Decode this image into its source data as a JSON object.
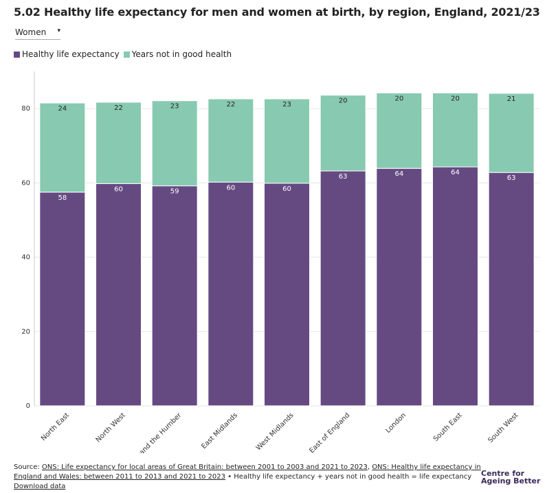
{
  "chart_data": {
    "type": "stacked_bar",
    "title": "5.02 Healthy life expectancy for men and women at birth, by region, England, 2021/23",
    "selector": "Women",
    "categories": [
      "North East",
      "North West",
      "Yorkshire and the Humber",
      "East Midlands",
      "West Midlands",
      "East of England",
      "London",
      "South East",
      "South West"
    ],
    "series": [
      {
        "name": "Healthy life expectancy",
        "color": "#654a82",
        "values": [
          57.5,
          59.8,
          59.2,
          60.2,
          59.9,
          63.2,
          63.9,
          64.3,
          62.8
        ],
        "value_labels": [
          "58",
          "60",
          "59",
          "60",
          "60",
          "63",
          "64",
          "64",
          "63"
        ]
      },
      {
        "name": "Years not in good health",
        "color": "#88c9b1",
        "values": [
          24.0,
          21.9,
          22.9,
          22.4,
          22.7,
          20.4,
          20.3,
          19.9,
          21.3
        ],
        "value_labels": [
          "24",
          "22",
          "23",
          "22",
          "23",
          "20",
          "20",
          "20",
          "21"
        ]
      }
    ],
    "ylim": [
      0,
      90
    ],
    "yticks": [
      0,
      20,
      40,
      60,
      80
    ],
    "grid": true
  },
  "footer": {
    "source_label": "Source:",
    "links": [
      "ONS: Life expectancy for local areas of Great Britain: between 2001 to 2003 and 2021 to 2023",
      "ONS: Healthy life expectancy in England and Wales: between 2011 to 2013 and 2021 to 2023"
    ],
    "separator": ",",
    "note": "• Healthy life expectancy + years not in good health = life expectancy",
    "download": "Download data",
    "logo": [
      "Centre for",
      "Ageing Better"
    ]
  }
}
